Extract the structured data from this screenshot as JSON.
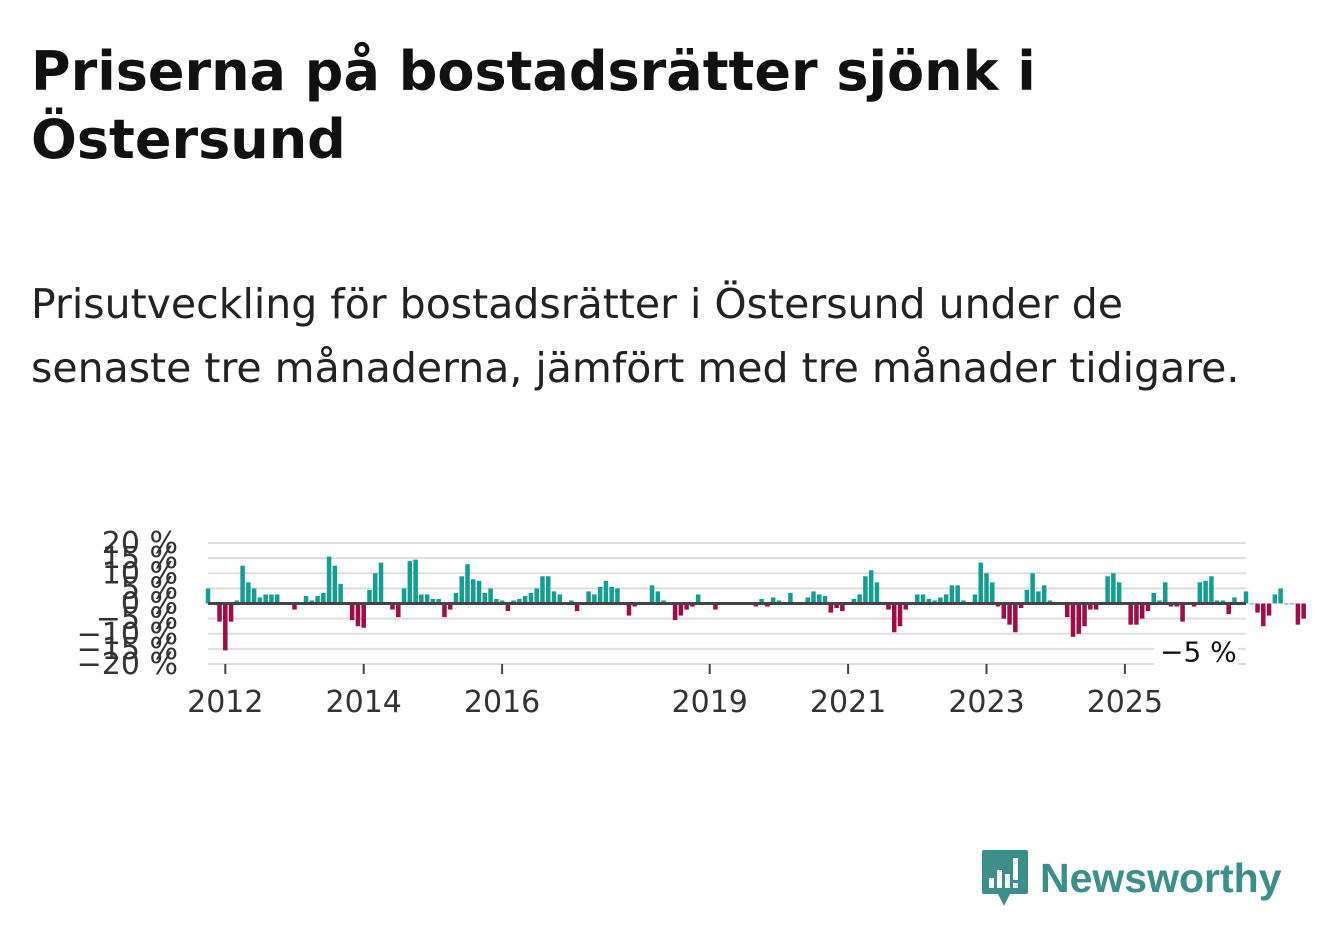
{
  "title": "Priserna på bostadsrätter sjönk i Östersund",
  "subtitle": "Prisutveckling för bostadsrätter i Östersund under de senaste tre månaderna, jämfört med tre månader tidigare.",
  "brand": {
    "name": "Newsworthy",
    "color": "#3b8e8a"
  },
  "colors": {
    "positive": "#139e92",
    "negative": "#a30a48",
    "grid": "#dddddd",
    "zero": "#444444"
  },
  "chart_data": {
    "type": "bar",
    "title": "Prisutveckling för bostadsrätter i Östersund",
    "xlabel": "",
    "ylabel": "",
    "ylim": [
      -20,
      20
    ],
    "yticks": [
      -20,
      -15,
      -10,
      -5,
      0,
      5,
      10,
      15,
      20
    ],
    "ytick_labels": [
      "−20 %",
      "−15 %",
      "−10 %",
      "−5 %",
      "0 %",
      "5 %",
      "10 %",
      "15 %",
      "20 %"
    ],
    "xlim": [
      2011.75,
      2026.75
    ],
    "xtick_labels": [
      "2012",
      "2014",
      "2016",
      "2019",
      "2021",
      "2023",
      "2025"
    ],
    "last_value_label": "−5 %",
    "start": [
      2011,
      10
    ],
    "values": [
      5,
      0,
      -6,
      -15.5,
      -6,
      1,
      12.5,
      7,
      5,
      2,
      3,
      3,
      3,
      0,
      0,
      -2,
      0,
      2.5,
      1,
      2.5,
      3.5,
      15.5,
      12.5,
      6.5,
      0,
      -5.5,
      -7.5,
      -8,
      4.5,
      10,
      13.5,
      0,
      -2,
      -4.5,
      5,
      14,
      14.5,
      3,
      3,
      1.5,
      1.5,
      -4.5,
      -2,
      3.5,
      9,
      13,
      8,
      7.5,
      3.5,
      5,
      1.5,
      1,
      -2.5,
      1,
      1.5,
      2.5,
      3.5,
      5,
      9,
      9,
      4,
      3,
      0,
      1,
      -2.5,
      0,
      4,
      3,
      5.5,
      7.5,
      5.5,
      5,
      0,
      -4,
      -1,
      0,
      0,
      6,
      4,
      1,
      0,
      -5.5,
      -4,
      -2,
      -1,
      3,
      0.5,
      0,
      -2,
      0,
      0,
      0,
      0,
      0,
      0,
      -1,
      1.5,
      -1,
      2,
      1,
      0,
      3.5,
      0,
      0,
      2,
      4,
      3,
      2.5,
      -3,
      -1.5,
      -2.5,
      0,
      1.5,
      3,
      9,
      11,
      7,
      0,
      -2,
      -9.5,
      -7.5,
      -2,
      0,
      3,
      3,
      1.5,
      1,
      2,
      3,
      6,
      6,
      1,
      0,
      3,
      13.5,
      10,
      7,
      -1,
      -5,
      -7,
      -9.5,
      -1.5,
      4.5,
      10,
      4,
      6,
      1,
      0,
      0,
      -4.5,
      -11,
      -10,
      -7.5,
      -2,
      -2,
      0,
      9,
      10,
      7,
      0,
      -7,
      -7,
      -5,
      -2.5,
      3.5,
      1,
      7,
      -1,
      -1,
      -6,
      0,
      -1,
      7,
      7.5,
      9,
      1,
      1,
      -3.5,
      2,
      0,
      4,
      0,
      -3,
      -7.5,
      -4,
      3,
      5,
      0,
      0,
      -7,
      -5
    ]
  }
}
